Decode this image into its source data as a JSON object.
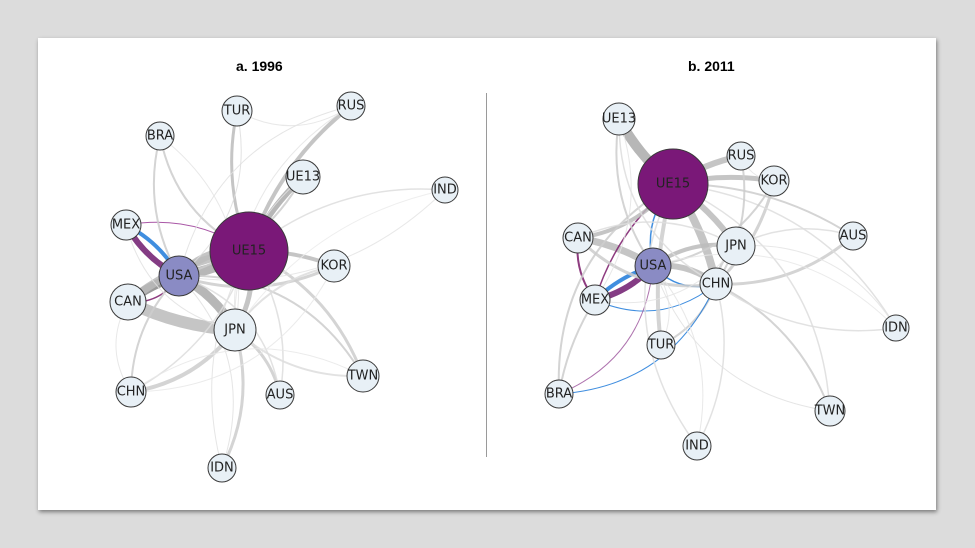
{
  "panels": [
    {
      "title": "a. 1996",
      "nodes": [
        {
          "id": "TUR",
          "label": "TUR",
          "fill": "#e8f0f6",
          "weight": 1
        },
        {
          "id": "RUS",
          "label": "RUS",
          "fill": "#e8f0f6",
          "weight": 1
        },
        {
          "id": "BRA",
          "label": "BRA",
          "fill": "#e8f0f6",
          "weight": 1
        },
        {
          "id": "UE13",
          "label": "UE13",
          "fill": "#e8f0f6",
          "weight": 1
        },
        {
          "id": "IND",
          "label": "IND",
          "fill": "#e8f0f6",
          "weight": 1
        },
        {
          "id": "MEX",
          "label": "MEX",
          "fill": "#e8f0f6",
          "weight": 1
        },
        {
          "id": "UE15",
          "label": "UE15",
          "fill": "#7a1878",
          "weight": 9
        },
        {
          "id": "USA",
          "label": "USA",
          "fill": "#8a8bc4",
          "weight": 3
        },
        {
          "id": "KOR",
          "label": "KOR",
          "fill": "#e8f0f6",
          "weight": 1
        },
        {
          "id": "CAN",
          "label": "CAN",
          "fill": "#e8f0f6",
          "weight": 2
        },
        {
          "id": "JPN",
          "label": "JPN",
          "fill": "#e8f0f6",
          "weight": 3
        },
        {
          "id": "TWN",
          "label": "TWN",
          "fill": "#e8f0f6",
          "weight": 1
        },
        {
          "id": "CHN",
          "label": "CHN",
          "fill": "#e8f0f6",
          "weight": 1
        },
        {
          "id": "AUS",
          "label": "AUS",
          "fill": "#e8f0f6",
          "weight": 1
        },
        {
          "id": "IDN",
          "label": "IDN",
          "fill": "#e8f0f6",
          "weight": 1
        }
      ],
      "edges": [
        {
          "source": "MEX",
          "target": "USA",
          "color": "#6f1a6f",
          "width": 6,
          "bend": 0.15
        },
        {
          "source": "USA",
          "target": "MEX",
          "color": "#1f7ad9",
          "width": 4,
          "bend": 0.15
        },
        {
          "source": "CAN",
          "target": "USA",
          "color": "#888",
          "width": 9,
          "bend": -0.1
        },
        {
          "source": "CAN",
          "target": "USA",
          "color": "#7a1a6a",
          "width": 1.5,
          "bend": 0.3
        },
        {
          "source": "MEX",
          "target": "UE15",
          "color": "#9a3a96",
          "width": 1,
          "bend": -0.2
        },
        {
          "source": "USA",
          "target": "UE15",
          "color": "#aaa",
          "width": 10,
          "bend": 0.1
        },
        {
          "source": "UE15",
          "target": "USA",
          "color": "#bbb",
          "width": 8,
          "bend": 0.25
        },
        {
          "source": "JPN",
          "target": "USA",
          "color": "#aaa",
          "width": 9,
          "bend": 0.15
        },
        {
          "source": "CAN",
          "target": "JPN",
          "color": "#bbb",
          "width": 12,
          "bend": 0.1
        },
        {
          "source": "CAN",
          "target": "UE15",
          "color": "#bbb",
          "width": 8,
          "bend": -0.15
        },
        {
          "source": "UE13",
          "target": "UE15",
          "color": "#aaa",
          "width": 6,
          "bend": 0.1
        },
        {
          "source": "RUS",
          "target": "UE15",
          "color": "#bbb",
          "width": 4,
          "bend": 0.15
        },
        {
          "source": "TUR",
          "target": "UE15",
          "color": "#bbb",
          "width": 3,
          "bend": 0.15
        },
        {
          "source": "KOR",
          "target": "UE15",
          "color": "#bbb",
          "width": 4,
          "bend": 0.1
        },
        {
          "source": "JPN",
          "target": "UE15",
          "color": "#bbb",
          "width": 5,
          "bend": 0.2
        },
        {
          "source": "CHN",
          "target": "JPN",
          "color": "#ccc",
          "width": 4,
          "bend": 0.2
        },
        {
          "source": "TWN",
          "target": "UE15",
          "color": "#ccc",
          "width": 3,
          "bend": 0.2
        },
        {
          "source": "AUS",
          "target": "JPN",
          "color": "#ccc",
          "width": 3,
          "bend": 0.2
        },
        {
          "source": "IDN",
          "target": "JPN",
          "color": "#ccc",
          "width": 3,
          "bend": 0.2
        },
        {
          "source": "BRA",
          "target": "USA",
          "color": "#ccc",
          "width": 2,
          "bend": 0.2
        },
        {
          "source": "BRA",
          "target": "UE15",
          "color": "#ccc",
          "width": 2,
          "bend": 0.25
        },
        {
          "source": "KOR",
          "target": "USA",
          "color": "#ccc",
          "width": 3,
          "bend": -0.2
        },
        {
          "source": "TWN",
          "target": "USA",
          "color": "#ccc",
          "width": 2,
          "bend": 0.3
        },
        {
          "source": "CHN",
          "target": "USA",
          "color": "#ccc",
          "width": 2,
          "bend": -0.2
        },
        {
          "source": "UE13",
          "target": "USA",
          "color": "#ccc",
          "width": 2,
          "bend": -0.2
        },
        {
          "source": "IND",
          "target": "UE15",
          "color": "#ddd",
          "width": 1.5,
          "bend": 0.2
        },
        {
          "source": "IND",
          "target": "USA",
          "color": "#e4e4e4",
          "width": 1,
          "bend": -0.25
        },
        {
          "source": "RUS",
          "target": "USA",
          "color": "#e0e0e0",
          "width": 1,
          "bend": 0.3
        },
        {
          "source": "TUR",
          "target": "USA",
          "color": "#ddd",
          "width": 1,
          "bend": -0.3
        },
        {
          "source": "IDN",
          "target": "USA",
          "color": "#e0e0e0",
          "width": 1,
          "bend": 0.3
        },
        {
          "source": "AUS",
          "target": "UE15",
          "color": "#ddd",
          "width": 1.5,
          "bend": 0.2
        },
        {
          "source": "CHN",
          "target": "UE15",
          "color": "#ddd",
          "width": 1.5,
          "bend": 0.2
        },
        {
          "source": "IDN",
          "target": "UE15",
          "color": "#e0e0e0",
          "width": 1,
          "bend": -0.2
        },
        {
          "source": "KOR",
          "target": "JPN",
          "color": "#ddd",
          "width": 2,
          "bend": 0.2
        },
        {
          "source": "TWN",
          "target": "JPN",
          "color": "#ddd",
          "width": 2,
          "bend": -0.2
        },
        {
          "source": "MEX",
          "target": "JPN",
          "color": "#e0e0e0",
          "width": 1,
          "bend": 0.3
        },
        {
          "source": "BRA",
          "target": "JPN",
          "color": "#e4e4e4",
          "width": 1,
          "bend": -0.3
        },
        {
          "source": "RUS",
          "target": "JPN",
          "color": "#e4e4e4",
          "width": 1,
          "bend": 0.3
        },
        {
          "source": "UE13",
          "target": "JPN",
          "color": "#e4e4e4",
          "width": 1,
          "bend": 0.25
        },
        {
          "source": "CAN",
          "target": "CHN",
          "color": "#e4e4e4",
          "width": 1,
          "bend": 0.3
        },
        {
          "source": "AUS",
          "target": "USA",
          "color": "#ddd",
          "width": 1.5,
          "bend": 0.3
        },
        {
          "source": "IND",
          "target": "JPN",
          "color": "#ebebeb",
          "width": 1,
          "bend": 0.2
        },
        {
          "source": "TUR",
          "target": "RUS",
          "color": "#e4e4e4",
          "width": 1,
          "bend": 0.3
        },
        {
          "source": "CHN",
          "target": "KOR",
          "color": "#e8e8e8",
          "width": 1,
          "bend": 0.3
        },
        {
          "source": "TWN",
          "target": "CHN",
          "color": "#e8e8e8",
          "width": 1,
          "bend": 0.3
        }
      ]
    },
    {
      "title": "b. 2011",
      "nodes": [
        {
          "id": "UE13",
          "label": "UE13",
          "fill": "#e8f0f6",
          "weight": 1
        },
        {
          "id": "UE15",
          "label": "UE15",
          "fill": "#7a1878",
          "weight": 9
        },
        {
          "id": "RUS",
          "label": "RUS",
          "fill": "#e8f0f6",
          "weight": 1
        },
        {
          "id": "KOR",
          "label": "KOR",
          "fill": "#e8f0f6",
          "weight": 1
        },
        {
          "id": "CAN",
          "label": "CAN",
          "fill": "#e8f0f6",
          "weight": 1
        },
        {
          "id": "JPN",
          "label": "JPN",
          "fill": "#e8f0f6",
          "weight": 2
        },
        {
          "id": "AUS",
          "label": "AUS",
          "fill": "#e8f0f6",
          "weight": 1
        },
        {
          "id": "USA",
          "label": "USA",
          "fill": "#8a8bc4",
          "weight": 2
        },
        {
          "id": "CHN",
          "label": "CHN",
          "fill": "#e8f0f6",
          "weight": 1
        },
        {
          "id": "MEX",
          "label": "MEX",
          "fill": "#e8f0f6",
          "weight": 1
        },
        {
          "id": "IDN",
          "label": "IDN",
          "fill": "#e8f0f6",
          "weight": 1
        },
        {
          "id": "TUR",
          "label": "TUR",
          "fill": "#e8f0f6",
          "weight": 1
        },
        {
          "id": "BRA",
          "label": "BRA",
          "fill": "#e8f0f6",
          "weight": 1
        },
        {
          "id": "TWN",
          "label": "TWN",
          "fill": "#e8f0f6",
          "weight": 1
        },
        {
          "id": "IND",
          "label": "IND",
          "fill": "#e8f0f6",
          "weight": 1
        }
      ],
      "edges": [
        {
          "source": "MEX",
          "target": "USA",
          "color": "#6f1a6f",
          "width": 6,
          "bend": 0.15
        },
        {
          "source": "USA",
          "target": "MEX",
          "color": "#1f7ad9",
          "width": 4,
          "bend": 0.12
        },
        {
          "source": "CAN",
          "target": "USA",
          "color": "#bbb",
          "width": 7,
          "bend": -0.1
        },
        {
          "source": "CAN",
          "target": "MEX",
          "color": "#7a1a6a",
          "width": 2,
          "bend": 0.2
        },
        {
          "source": "MEX",
          "target": "UE15",
          "color": "#7a1a6a",
          "width": 1.5,
          "bend": -0.15
        },
        {
          "source": "USA",
          "target": "UE15",
          "color": "#1f7ad9",
          "width": 1.5,
          "bend": -0.25
        },
        {
          "source": "UE13",
          "target": "UE15",
          "color": "#aaa",
          "width": 10,
          "bend": 0.1
        },
        {
          "source": "RUS",
          "target": "UE15",
          "color": "#bbb",
          "width": 6,
          "bend": 0.1
        },
        {
          "source": "KOR",
          "target": "UE15",
          "color": "#bbb",
          "width": 5,
          "bend": 0.1
        },
        {
          "source": "JPN",
          "target": "UE15",
          "color": "#bbb",
          "width": 6,
          "bend": 0.1
        },
        {
          "source": "CHN",
          "target": "UE15",
          "color": "#bbb",
          "width": 8,
          "bend": 0.1
        },
        {
          "source": "CHN",
          "target": "USA",
          "color": "#bbb",
          "width": 6,
          "bend": 0.2
        },
        {
          "source": "USA",
          "target": "CHN",
          "color": "#1f7ad9",
          "width": 1.5,
          "bend": 0.3
        },
        {
          "source": "MEX",
          "target": "CHN",
          "color": "#1f7ad9",
          "width": 1,
          "bend": 0.3
        },
        {
          "source": "CAN",
          "target": "UE15",
          "color": "#bbb",
          "width": 4,
          "bend": 0.2
        },
        {
          "source": "CAN",
          "target": "CHN",
          "color": "#ccc",
          "width": 3,
          "bend": 0.25
        },
        {
          "source": "JPN",
          "target": "USA",
          "color": "#bbb",
          "width": 4,
          "bend": 0.2
        },
        {
          "source": "TUR",
          "target": "UE15",
          "color": "#ccc",
          "width": 4,
          "bend": -0.1
        },
        {
          "source": "TUR",
          "target": "CHN",
          "color": "#ccc",
          "width": 2,
          "bend": 0.2
        },
        {
          "source": "AUS",
          "target": "UE15",
          "color": "#ccc",
          "width": 2,
          "bend": 0.15
        },
        {
          "source": "AUS",
          "target": "CHN",
          "color": "#ccc",
          "width": 3,
          "bend": -0.2
        },
        {
          "source": "KOR",
          "target": "CHN",
          "color": "#ccc",
          "width": 3,
          "bend": -0.15
        },
        {
          "source": "BRA",
          "target": "UE15",
          "color": "#ccc",
          "width": 2,
          "bend": -0.3
        },
        {
          "source": "BRA",
          "target": "USA",
          "color": "#a05aa0",
          "width": 1,
          "bend": 0.3
        },
        {
          "source": "BRA",
          "target": "CHN",
          "color": "#1f7ad9",
          "width": 1,
          "bend": 0.3
        },
        {
          "source": "BRA",
          "target": "MEX",
          "color": "#ccc",
          "width": 2,
          "bend": -0.1
        },
        {
          "source": "IND",
          "target": "UE15",
          "color": "#ddd",
          "width": 1.5,
          "bend": -0.3
        },
        {
          "source": "IND",
          "target": "CHN",
          "color": "#ddd",
          "width": 1.5,
          "bend": 0.2
        },
        {
          "source": "TWN",
          "target": "CHN",
          "color": "#ccc",
          "width": 2,
          "bend": 0.2
        },
        {
          "source": "TWN",
          "target": "UE15",
          "color": "#ddd",
          "width": 1.5,
          "bend": 0.3
        },
        {
          "source": "IDN",
          "target": "CHN",
          "color": "#ddd",
          "width": 1.5,
          "bend": -0.2
        },
        {
          "source": "IDN",
          "target": "UE15",
          "color": "#ddd",
          "width": 1.5,
          "bend": 0.25
        },
        {
          "source": "RUS",
          "target": "CHN",
          "color": "#ccc",
          "width": 2,
          "bend": -0.2
        },
        {
          "source": "UE13",
          "target": "USA",
          "color": "#ccc",
          "width": 2,
          "bend": 0.2
        },
        {
          "source": "UE13",
          "target": "CHN",
          "color": "#ddd",
          "width": 1.5,
          "bend": 0.3
        },
        {
          "source": "UE13",
          "target": "MEX",
          "color": "#e4e4e4",
          "width": 1,
          "bend": -0.25
        },
        {
          "source": "KOR",
          "target": "USA",
          "color": "#ccc",
          "width": 2,
          "bend": -0.25
        },
        {
          "source": "JPN",
          "target": "CHN",
          "color": "#ccc",
          "width": 2.5,
          "bend": 0.2
        },
        {
          "source": "AUS",
          "target": "JPN",
          "color": "#ddd",
          "width": 1.5,
          "bend": 0.2
        },
        {
          "source": "IDN",
          "target": "JPN",
          "color": "#e4e4e4",
          "width": 1,
          "bend": 0.3
        },
        {
          "source": "TWN",
          "target": "USA",
          "color": "#e0e0e0",
          "width": 1,
          "bend": -0.3
        },
        {
          "source": "IND",
          "target": "USA",
          "color": "#e4e4e4",
          "width": 1,
          "bend": 0.25
        },
        {
          "source": "CAN",
          "target": "JPN",
          "color": "#ddd",
          "width": 1.5,
          "bend": -0.25
        },
        {
          "source": "MEX",
          "target": "JPN",
          "color": "#e4e4e4",
          "width": 1,
          "bend": 0.3
        },
        {
          "source": "RUS",
          "target": "KOR",
          "color": "#e4e4e4",
          "width": 1,
          "bend": 0.3
        },
        {
          "source": "TUR",
          "target": "USA",
          "color": "#e4e4e4",
          "width": 1,
          "bend": 0.3
        },
        {
          "source": "IDN",
          "target": "USA",
          "color": "#e8e8e8",
          "width": 1,
          "bend": 0.3
        }
      ]
    }
  ]
}
